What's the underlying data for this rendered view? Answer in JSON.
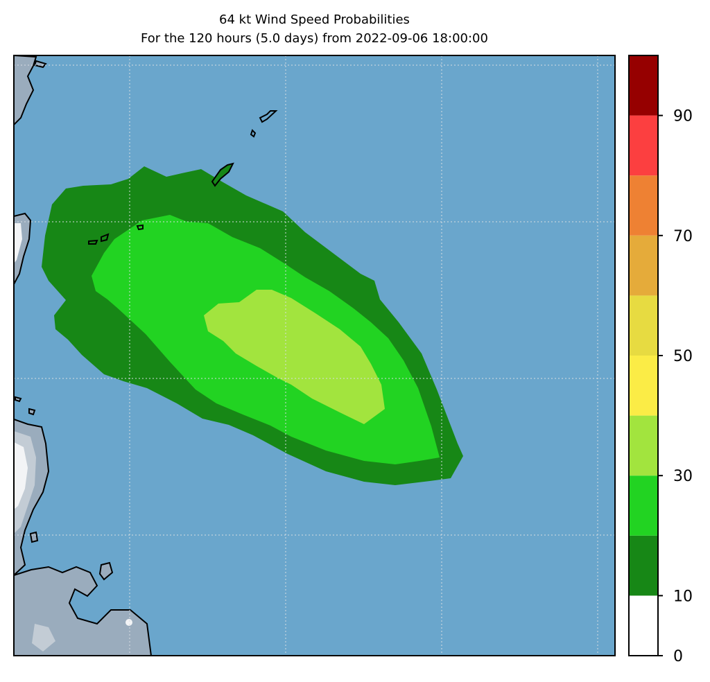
{
  "title": "64 kt Wind Speed Probabilities",
  "subtitle": "For the 120 hours (5.0 days) from 2022-09-06 18:00:00",
  "colors": {
    "ocean": "#6aa6cc",
    "land": "#9aacbd",
    "land_high": "#c3ccd5",
    "land_peak": "#f3f4f6",
    "coast": "#000000",
    "grid": "#d8dde2"
  },
  "chart_data": {
    "type": "heatmap",
    "title": "64 kt Wind Speed Probabilities",
    "subtitle": "For the 120 hours (5.0 days) from 2022-09-06 18:00:00",
    "grid": true,
    "colorbar": {
      "placement": "right",
      "levels": [
        0,
        10,
        20,
        30,
        40,
        50,
        60,
        70,
        80,
        90,
        100
      ],
      "tick_labels": [
        "0",
        "10",
        "30",
        "50",
        "70",
        "90"
      ],
      "tick_values": [
        0,
        10,
        30,
        50,
        70,
        90
      ],
      "colors": [
        "#ffffff",
        "#178716",
        "#22d322",
        "#a2e43e",
        "#fbec46",
        "#e7db41",
        "#e5ab3a",
        "#ee8133",
        "#fc3f40",
        "#960000",
        "#8026d9"
      ]
    },
    "contours": [
      {
        "min": 5,
        "max": 10,
        "color": "#178716"
      },
      {
        "min": 10,
        "max": 20,
        "color": "#22d322"
      },
      {
        "min": 20,
        "max": 30,
        "color": "#a2e43e"
      }
    ]
  }
}
